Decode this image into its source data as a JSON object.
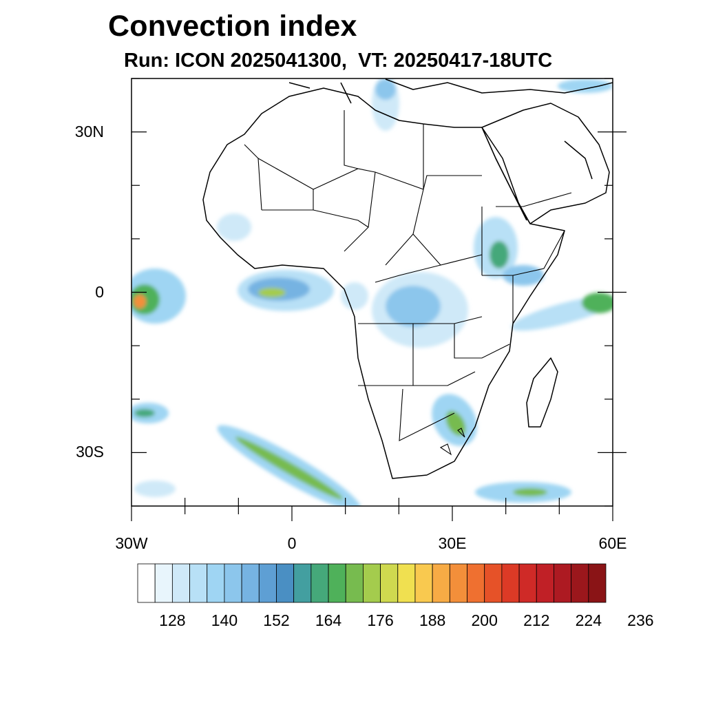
{
  "title": "Convection index",
  "subtitle": "Run: ICON 2025041300,  VT: 20250417-18UTC",
  "map": {
    "lon_range": [
      -30,
      60
    ],
    "lat_range": [
      -40,
      40
    ],
    "lat_ticks": [
      {
        "label": "30N",
        "value": 30
      },
      {
        "label": "0",
        "value": 0
      },
      {
        "label": "30S",
        "value": -30
      }
    ],
    "lon_ticks": [
      {
        "label": "30W",
        "value": -30
      },
      {
        "label": "0",
        "value": 0
      },
      {
        "label": "30E",
        "value": 30
      },
      {
        "label": "60E",
        "value": 60
      }
    ]
  },
  "colorbar": {
    "colors": [
      "#ffffff",
      "#e8f5fc",
      "#cfe9f8",
      "#b8e0f6",
      "#9fd5f3",
      "#8cc6ec",
      "#76b3e2",
      "#5e9fd4",
      "#4a8fc3",
      "#439fa0",
      "#45a87a",
      "#4fb15a",
      "#77bb4f",
      "#a4cc4d",
      "#cfd94f",
      "#f0e050",
      "#f9c94f",
      "#f7ab45",
      "#f38f3a",
      "#ef7030",
      "#e65228",
      "#dc3a26",
      "#cf2a27",
      "#c02026",
      "#ad1a22",
      "#9b171c",
      "#8a1416"
    ],
    "labels": [
      "128",
      "140",
      "152",
      "164",
      "176",
      "188",
      "200",
      "212",
      "224",
      "236"
    ]
  }
}
